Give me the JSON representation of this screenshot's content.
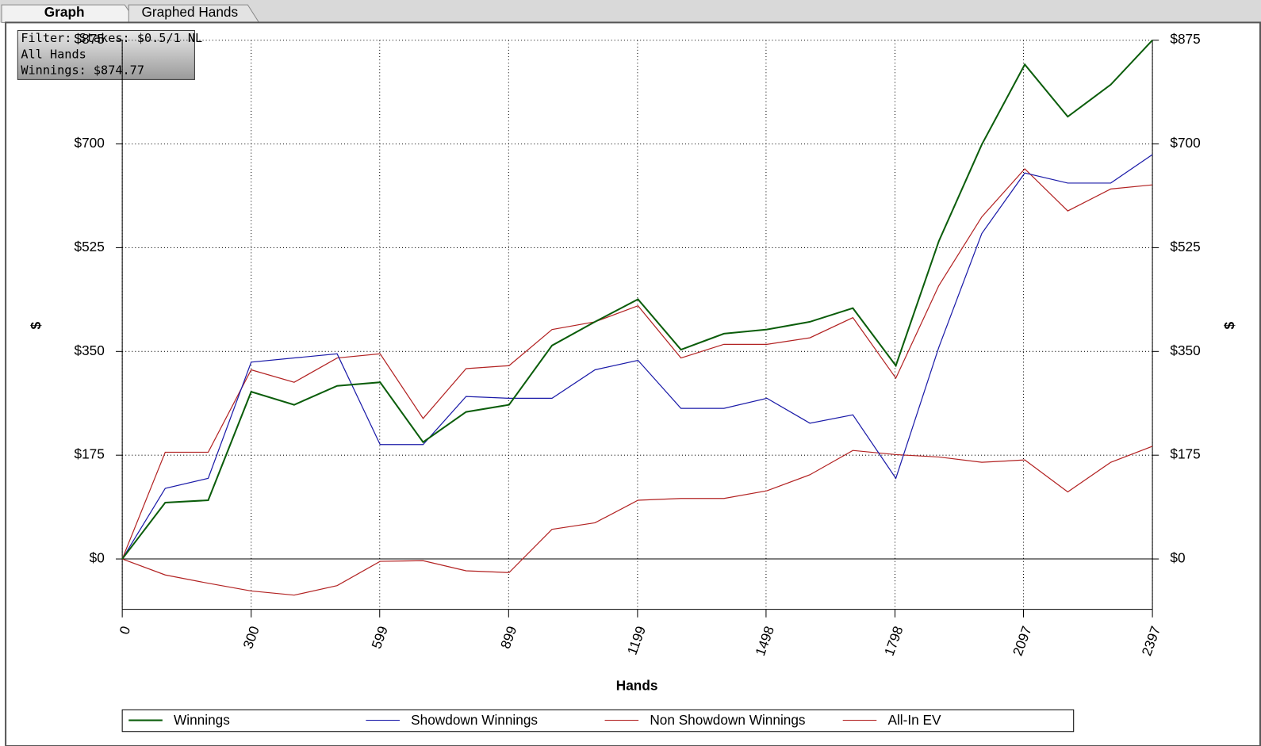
{
  "tabs": [
    "Graph",
    "Graphed Hands"
  ],
  "info": [
    "Filter: Stakes: $0.5/1 NL",
    "All Hands",
    "Winnings: $874.77"
  ],
  "chart_data": {
    "type": "line",
    "xlabel": "Hands",
    "ylabel": "$",
    "x": [
      0,
      100,
      200,
      300,
      400,
      500,
      600,
      700,
      800,
      900,
      1000,
      1100,
      1200,
      1300,
      1400,
      1500,
      1600,
      1700,
      1800,
      1900,
      2000,
      2100,
      2200,
      2300,
      2397
    ],
    "series": [
      {
        "name": "Winnings",
        "color": "#0b5d0b",
        "values": [
          0,
          95,
          99,
          282,
          260,
          292,
          298,
          197,
          248,
          260,
          360,
          400,
          438,
          353,
          380,
          387,
          400,
          423,
          326,
          536,
          699,
          834,
          746,
          800,
          875
        ]
      },
      {
        "name": "Showdown Winnings",
        "color": "#1a1aa8",
        "values": [
          0,
          119,
          136,
          332,
          339,
          346,
          193,
          193,
          274,
          271,
          271,
          319,
          335,
          254,
          254,
          271,
          229,
          243,
          136,
          357,
          549,
          651,
          634,
          634,
          682
        ]
      },
      {
        "name": "Non Showdown Winnings",
        "color": "#b22222",
        "values": [
          0,
          -27,
          -41,
          -54,
          -61,
          -45,
          -4,
          -3,
          -20,
          -23,
          50,
          61,
          99,
          102,
          102,
          115,
          142,
          183,
          176,
          172,
          163,
          167,
          113,
          163,
          190
        ]
      },
      {
        "name": "All-In EV",
        "color": "#b22222",
        "values": [
          0,
          180,
          180,
          319,
          298,
          339,
          346,
          237,
          321,
          326,
          387,
          400,
          427,
          339,
          362,
          362,
          373,
          407,
          305,
          461,
          577,
          658,
          587,
          624,
          631
        ]
      }
    ],
    "xlim": [
      0,
      2397
    ],
    "xticks": [
      0,
      300,
      599,
      899,
      1199,
      1498,
      1798,
      2097,
      2397
    ],
    "ylim": [
      -85,
      875
    ],
    "yticks": [
      {
        "value": 0,
        "label": "$0"
      },
      {
        "value": 175,
        "label": "$175"
      },
      {
        "value": 350,
        "label": "$350"
      },
      {
        "value": 525,
        "label": "$525"
      },
      {
        "value": 700,
        "label": "$700"
      },
      {
        "value": 875,
        "label": "$875"
      }
    ],
    "grid": true,
    "legend": "bottom"
  }
}
